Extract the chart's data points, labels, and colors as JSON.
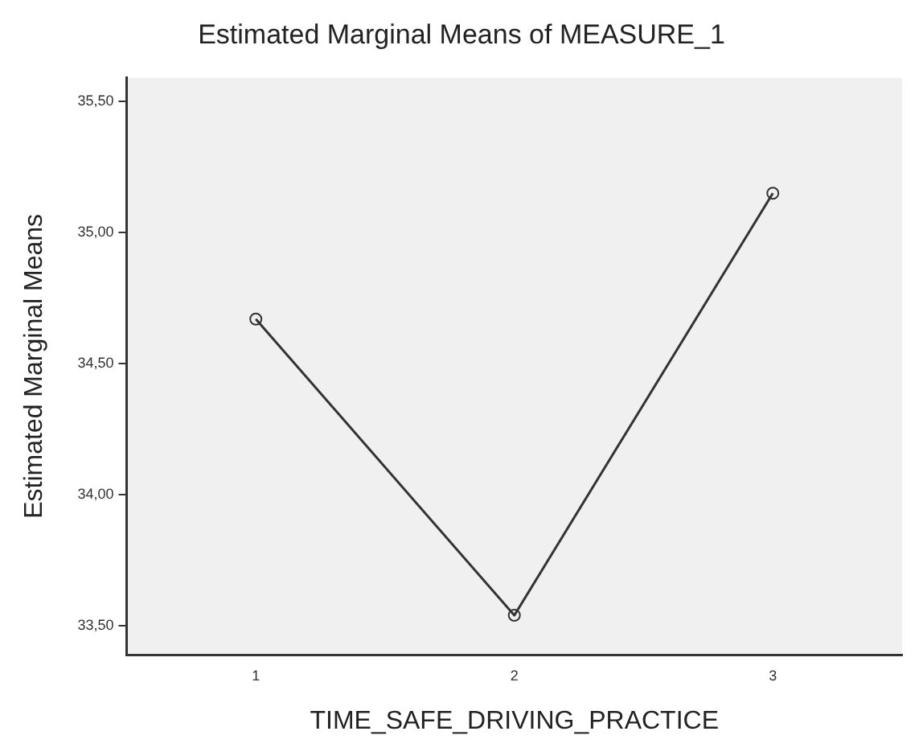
{
  "chart_data": {
    "type": "line",
    "title": "Estimated Marginal Means of MEASURE_1",
    "xlabel": "TIME_SAFE_DRIVING_PRACTICE",
    "ylabel": "Estimated Marginal Means",
    "categories": [
      "1",
      "2",
      "3"
    ],
    "series": [
      {
        "color": "#333333",
        "values": [
          34.67,
          33.54,
          35.15
        ]
      }
    ],
    "ylim": [
      33.39,
      35.59
    ],
    "yticks": [
      {
        "value": 33.5,
        "label": "33,50"
      },
      {
        "value": 34,
        "label": "34,00"
      },
      {
        "value": 34.5,
        "label": "34,50"
      },
      {
        "value": 35,
        "label": "35,00"
      },
      {
        "value": 35.5,
        "label": "35,50"
      }
    ],
    "grid": false,
    "legend": false,
    "marker": "circle",
    "line_style": "solid"
  }
}
